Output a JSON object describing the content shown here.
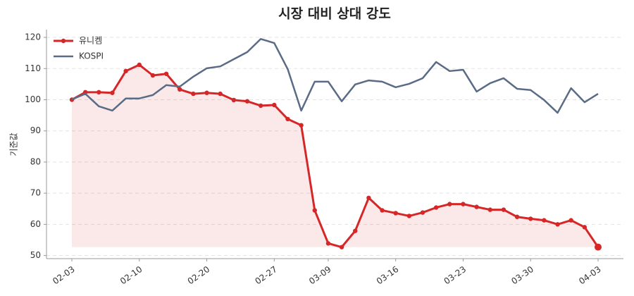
{
  "chart_data": {
    "type": "line",
    "title": "시장 대비 상대 강도",
    "y_label": "기준값",
    "categories": [
      "02-03",
      null,
      null,
      null,
      null,
      "02-10",
      null,
      null,
      null,
      null,
      "02-20",
      null,
      null,
      null,
      null,
      "02-27",
      null,
      null,
      null,
      "03-09",
      null,
      null,
      null,
      null,
      "03-16",
      null,
      null,
      null,
      null,
      "03-23",
      null,
      null,
      null,
      null,
      "03-30",
      null,
      null,
      null,
      null,
      "04-03"
    ],
    "series": [
      {
        "name": "유니켐",
        "color": "#d62728",
        "area": true,
        "markers": true,
        "values": [
          100.0,
          102.4,
          102.4,
          102.2,
          109.2,
          111.2,
          107.8,
          108.3,
          103.3,
          101.9,
          102.2,
          101.9,
          99.9,
          99.5,
          98.1,
          98.3,
          93.8,
          91.8,
          64.5,
          53.9,
          52.7,
          57.9,
          68.5,
          64.5,
          63.6,
          62.7,
          63.8,
          65.4,
          66.5,
          66.5,
          65.6,
          64.7,
          64.7,
          62.4,
          61.8,
          61.3,
          60.0,
          61.3,
          59.1,
          52.7
        ]
      },
      {
        "name": "KOSPI",
        "color": "#5a6b85",
        "area": false,
        "markers": false,
        "values": [
          100.1,
          101.9,
          97.9,
          96.5,
          100.4,
          100.4,
          101.5,
          104.7,
          104.2,
          107.4,
          110.1,
          110.7,
          113.0,
          115.3,
          119.5,
          118.2,
          109.8,
          96.5,
          105.8,
          105.8,
          99.5,
          104.9,
          106.2,
          105.8,
          104.0,
          105.1,
          106.9,
          112.1,
          109.2,
          109.6,
          102.6,
          105.3,
          106.9,
          103.5,
          103.1,
          99.9,
          95.8,
          103.7,
          99.2,
          101.9
        ]
      }
    ],
    "ylim": [
      49,
      122.5
    ],
    "yticks": [
      50,
      60,
      70,
      80,
      90,
      100,
      110,
      120
    ],
    "grid": true,
    "legend": "upper-left"
  }
}
